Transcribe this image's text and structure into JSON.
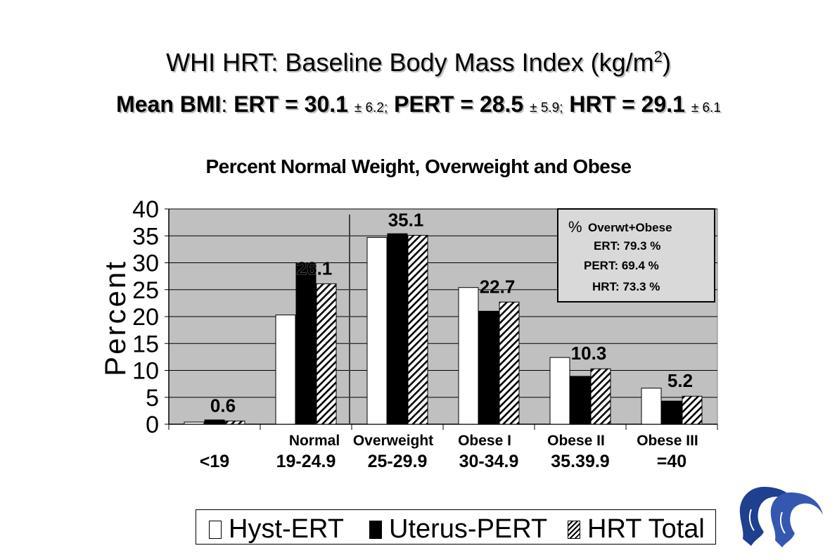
{
  "header": {
    "title_main": "WHI HRT: Baseline Body Mass Index (kg/m",
    "title_sup": "2",
    "title_end": ")",
    "sub_lead": "Mean BMI",
    "sub_colon": ":",
    "sub_ert": " ERT = 30.1 ",
    "sub_ert_sd": "± 6.2;",
    "sub_pert": " PERT = 28.5 ",
    "sub_pert_sd": "± 5.9;",
    "sub_hrt": " HRT = 29.1 ",
    "sub_hrt_sd": "± 6.1"
  },
  "infobox": {
    "pct_sign": "%",
    "heading": "Overwt+Obese",
    "ert": "ERT: 79.3 %",
    "pert": "PERT: 69.4 %",
    "hrt": "HRT: 73.3 %"
  },
  "chart_data": {
    "type": "bar",
    "title": "Percent Normal Weight, Overweight and Obese",
    "ylabel": "Percent",
    "ylim": [
      0,
      40
    ],
    "yticks": [
      0,
      5,
      10,
      15,
      20,
      25,
      30,
      35,
      40
    ],
    "categories": [
      "<19",
      "19-24.9",
      "25-29.9",
      "30-34.9",
      "35.39.9",
      "=40"
    ],
    "group_labels": [
      "",
      "Normal",
      "Overweight",
      "Obese I",
      "Obese II",
      "Obese III"
    ],
    "series": [
      {
        "name": "Hyst-ERT",
        "values": [
          0.4,
          20.3,
          34.7,
          25.4,
          12.4,
          6.7
        ]
      },
      {
        "name": "Uterus-PERT",
        "values": [
          0.8,
          29.9,
          35.4,
          21.0,
          8.9,
          4.3
        ]
      },
      {
        "name": "HRT Total",
        "values": [
          0.6,
          26.1,
          35.1,
          22.7,
          10.3,
          5.2
        ]
      }
    ],
    "data_labels": [
      "0.6",
      "26.1",
      "35.1",
      "22.7",
      "10.3",
      "5.2"
    ],
    "plot_background": "#c0c0c0",
    "grid": true,
    "legend_position": "bottom"
  }
}
